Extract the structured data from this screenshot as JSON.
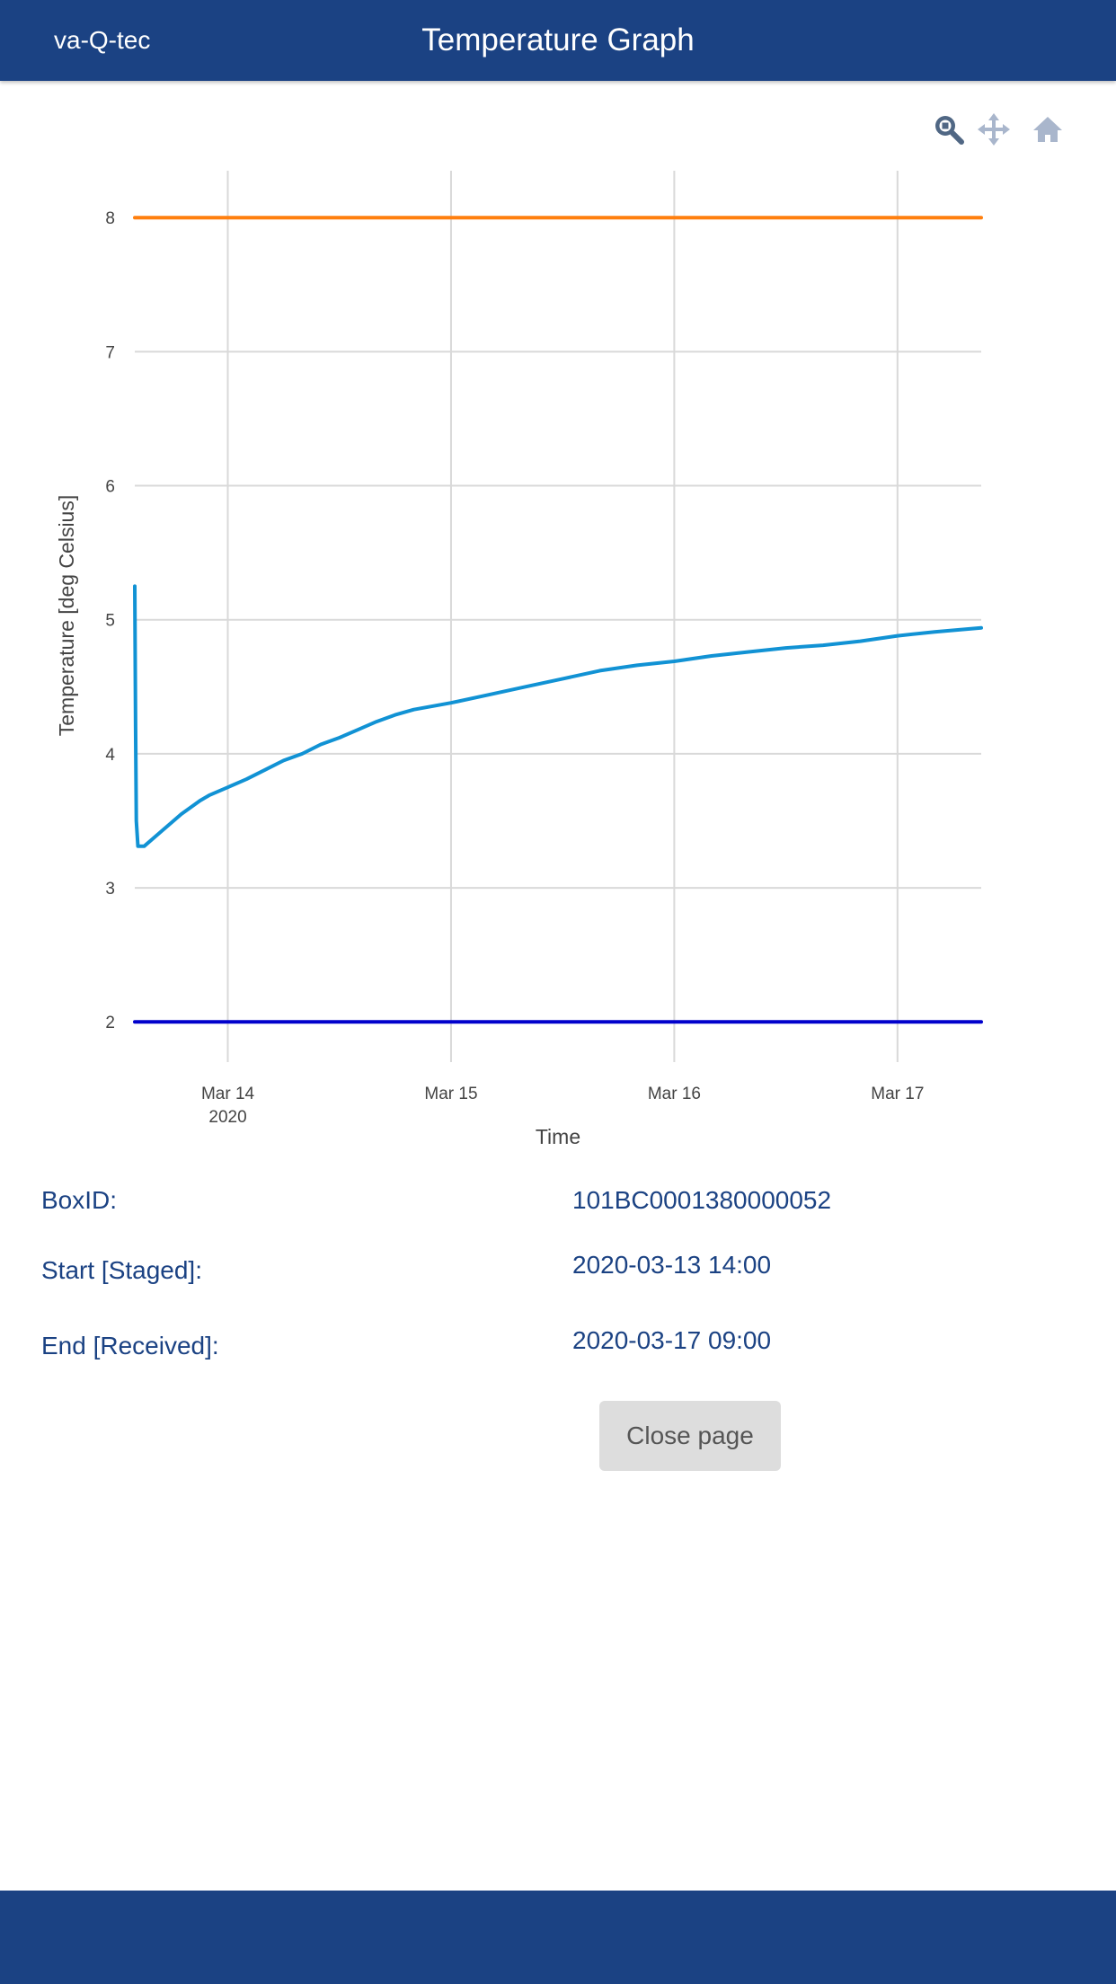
{
  "header": {
    "brand": "va-Q-tec",
    "title": "Temperature Graph",
    "background_color": "#1b4283"
  },
  "modebar": {
    "buttons": [
      {
        "name": "zoom-icon",
        "active": true
      },
      {
        "name": "pan-icon",
        "active": false
      },
      {
        "name": "home-icon",
        "active": false
      }
    ]
  },
  "chart_data": {
    "type": "line",
    "xlabel": "Time",
    "ylabel": "Temperature [deg Celsius]",
    "xlim": [
      "2020-03-13 14:00",
      "2020-03-17 09:00"
    ],
    "ylim": [
      1.7,
      8.35
    ],
    "grid": true,
    "x_ticks": [
      {
        "x": "2020-03-14 00:00",
        "label": "Mar 14",
        "sublabel": "2020"
      },
      {
        "x": "2020-03-15 00:00",
        "label": "Mar 15"
      },
      {
        "x": "2020-03-16 00:00",
        "label": "Mar 16"
      },
      {
        "x": "2020-03-17 00:00",
        "label": "Mar 17"
      }
    ],
    "y_ticks": [
      2,
      3,
      4,
      5,
      6,
      7,
      8
    ],
    "series": [
      {
        "color": "#ff7f0e",
        "x": [
          "2020-03-13 14:00",
          "2020-03-17 09:00"
        ],
        "y": [
          8,
          8
        ]
      },
      {
        "color": "#0000cc",
        "x": [
          "2020-03-13 14:00",
          "2020-03-17 09:00"
        ],
        "y": [
          2,
          2
        ]
      },
      {
        "color": "#1192d4",
        "x": [
          "2020-03-13 14:00",
          "2020-03-13 14:05",
          "2020-03-13 14:10",
          "2020-03-13 14:20",
          "2020-03-13 14:30",
          "2020-03-13 15:00",
          "2020-03-13 16:00",
          "2020-03-13 17:00",
          "2020-03-13 18:00",
          "2020-03-13 19:00",
          "2020-03-13 20:00",
          "2020-03-13 21:00",
          "2020-03-13 22:00",
          "2020-03-14 00:00",
          "2020-03-14 02:00",
          "2020-03-14 04:00",
          "2020-03-14 06:00",
          "2020-03-14 08:00",
          "2020-03-14 10:00",
          "2020-03-14 12:00",
          "2020-03-14 14:00",
          "2020-03-14 16:00",
          "2020-03-14 18:00",
          "2020-03-14 20:00",
          "2020-03-15 00:00",
          "2020-03-15 04:00",
          "2020-03-15 08:00",
          "2020-03-15 12:00",
          "2020-03-15 16:00",
          "2020-03-15 20:00",
          "2020-03-16 00:00",
          "2020-03-16 04:00",
          "2020-03-16 08:00",
          "2020-03-16 12:00",
          "2020-03-16 16:00",
          "2020-03-16 20:00",
          "2020-03-17 00:00",
          "2020-03-17 04:00",
          "2020-03-17 09:00"
        ],
        "y": [
          5.25,
          4.2,
          3.5,
          3.31,
          3.31,
          3.31,
          3.37,
          3.43,
          3.49,
          3.55,
          3.6,
          3.65,
          3.69,
          3.75,
          3.81,
          3.88,
          3.95,
          4.0,
          4.07,
          4.12,
          4.18,
          4.24,
          4.29,
          4.33,
          4.38,
          4.44,
          4.5,
          4.56,
          4.62,
          4.66,
          4.69,
          4.73,
          4.76,
          4.79,
          4.81,
          4.84,
          4.88,
          4.91,
          4.94
        ]
      }
    ]
  },
  "info": {
    "box_id_label": "BoxID:",
    "box_id_value": "101BC0001380000052",
    "start_label": "Start [Staged]:",
    "start_value": "2020-03-13 14:00",
    "end_label": "End [Received]:",
    "end_value": "2020-03-17 09:00"
  },
  "actions": {
    "close_label": "Close page"
  }
}
